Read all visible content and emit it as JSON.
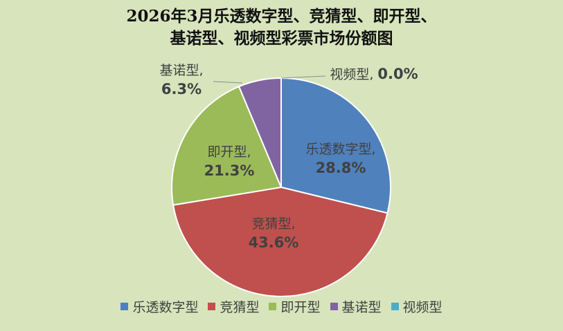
{
  "chart_data": {
    "type": "pie",
    "title_lines": [
      "2026年3月乐透数字型、竞猜型、即开型、",
      "基诺型、视频型彩票市场份额图"
    ],
    "slices": [
      {
        "name": "乐透数字型",
        "value": 28.8,
        "label": "28.8%",
        "color": "#4f81bd"
      },
      {
        "name": "竞猜型",
        "value": 43.6,
        "label": "43.6%",
        "color": "#c0504d"
      },
      {
        "name": "即开型",
        "value": 21.3,
        "label": "21.3%",
        "color": "#9bbb59"
      },
      {
        "name": "基诺型",
        "value": 6.3,
        "label": "6.3%",
        "color": "#8064a2"
      },
      {
        "name": "视频型",
        "value": 0.0,
        "label": "0.0%",
        "color": "#4bacc6"
      }
    ],
    "legend_position": "bottom"
  }
}
